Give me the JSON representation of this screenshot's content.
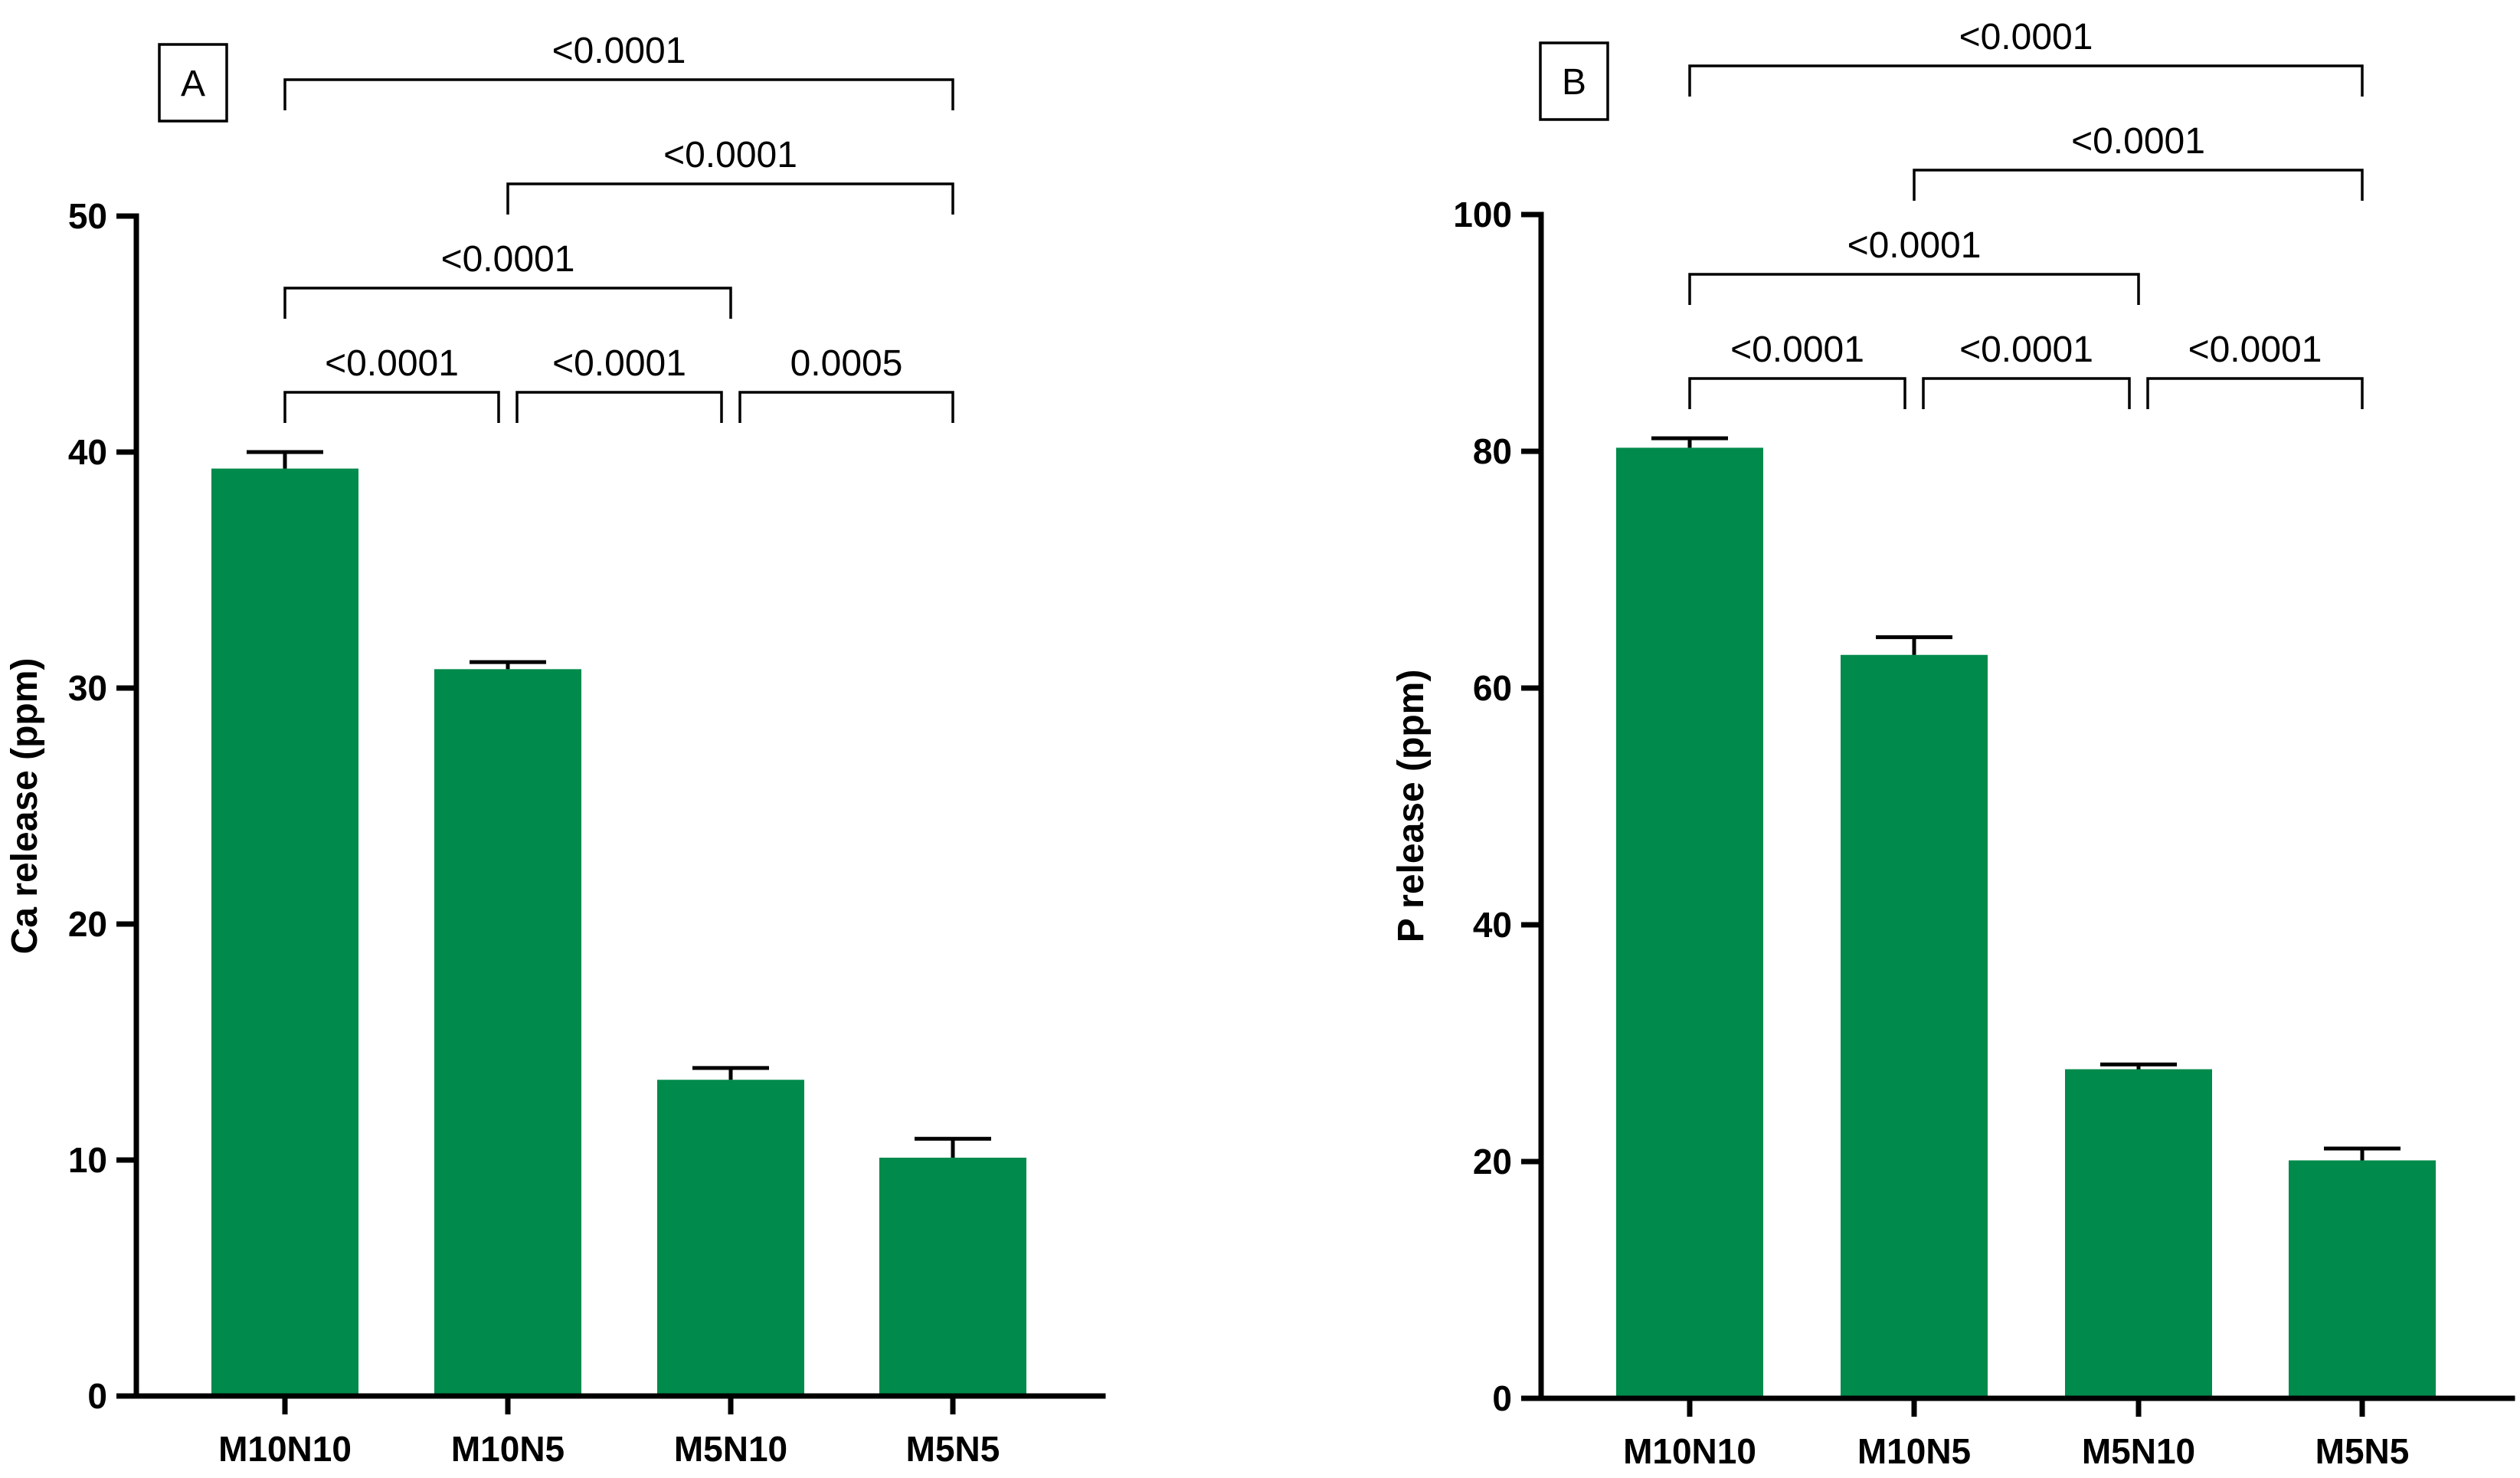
{
  "chart_data": [
    {
      "type": "bar",
      "panel_label": "A",
      "categories": [
        "M10N10",
        "M10N5",
        "M5N10",
        "M5N5"
      ],
      "values": [
        39.3,
        30.8,
        13.4,
        10.1
      ],
      "errors": [
        0.7,
        0.3,
        0.5,
        0.8
      ],
      "ylabel": "Ca release (ppm)",
      "xlabel": "",
      "ylim": [
        0,
        50
      ],
      "yticks": [
        0,
        10,
        20,
        30,
        40,
        50
      ],
      "bar_color": "#008a4b",
      "comparisons": [
        {
          "from": 0,
          "to": 1,
          "level": 0,
          "label": "<0.0001"
        },
        {
          "from": 1,
          "to": 2,
          "level": 0,
          "label": "<0.0001"
        },
        {
          "from": 2,
          "to": 3,
          "level": 0,
          "label": "0.0005"
        },
        {
          "from": 0,
          "to": 2,
          "level": 1,
          "label": "<0.0001"
        },
        {
          "from": 1,
          "to": 3,
          "level": 2,
          "label": "<0.0001"
        },
        {
          "from": 0,
          "to": 3,
          "level": 3,
          "label": "<0.0001"
        }
      ]
    },
    {
      "type": "bar",
      "panel_label": "B",
      "categories": [
        "M10N10",
        "M10N5",
        "M5N10",
        "M5N5"
      ],
      "values": [
        80.3,
        62.8,
        27.8,
        20.1
      ],
      "errors": [
        0.8,
        1.5,
        0.4,
        1.0
      ],
      "ylabel": "P release (ppm)",
      "xlabel": "",
      "ylim": [
        0,
        100
      ],
      "yticks": [
        0,
        20,
        40,
        60,
        80,
        100
      ],
      "bar_color": "#008a4b",
      "comparisons": [
        {
          "from": 0,
          "to": 1,
          "level": 0,
          "label": "<0.0001"
        },
        {
          "from": 1,
          "to": 2,
          "level": 0,
          "label": "<0.0001"
        },
        {
          "from": 2,
          "to": 3,
          "level": 0,
          "label": "<0.0001"
        },
        {
          "from": 0,
          "to": 2,
          "level": 1,
          "label": "<0.0001"
        },
        {
          "from": 1,
          "to": 3,
          "level": 2,
          "label": "<0.0001"
        },
        {
          "from": 0,
          "to": 3,
          "level": 3,
          "label": "<0.0001"
        }
      ]
    }
  ]
}
